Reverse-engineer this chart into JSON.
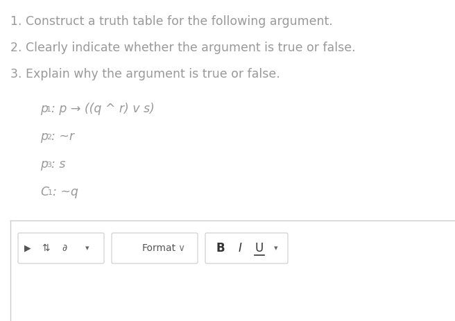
{
  "bg_color": "#ffffff",
  "text_color": "#999999",
  "dark_text": "#333333",
  "numbered_items": [
    "1. Construct a truth table for the following argument.",
    "2. Clearly indicate whether the argument is true or false.",
    "3. Explain why the argument is true or false."
  ],
  "logic_lines": [
    {
      "label": "p",
      "superscript": "1",
      "formula": ": p → ((q ^ r) v s)"
    },
    {
      "label": "p",
      "superscript": "2",
      "formula": ": ~r"
    },
    {
      "label": "p",
      "superscript": "3",
      "formula": ": s"
    },
    {
      "label": "C",
      "superscript": "1",
      "formula": ": ~q"
    }
  ],
  "font_size_numbered": 12.5,
  "font_size_logic": 12.5,
  "font_size_sup": 8.0,
  "format_label": "Format"
}
